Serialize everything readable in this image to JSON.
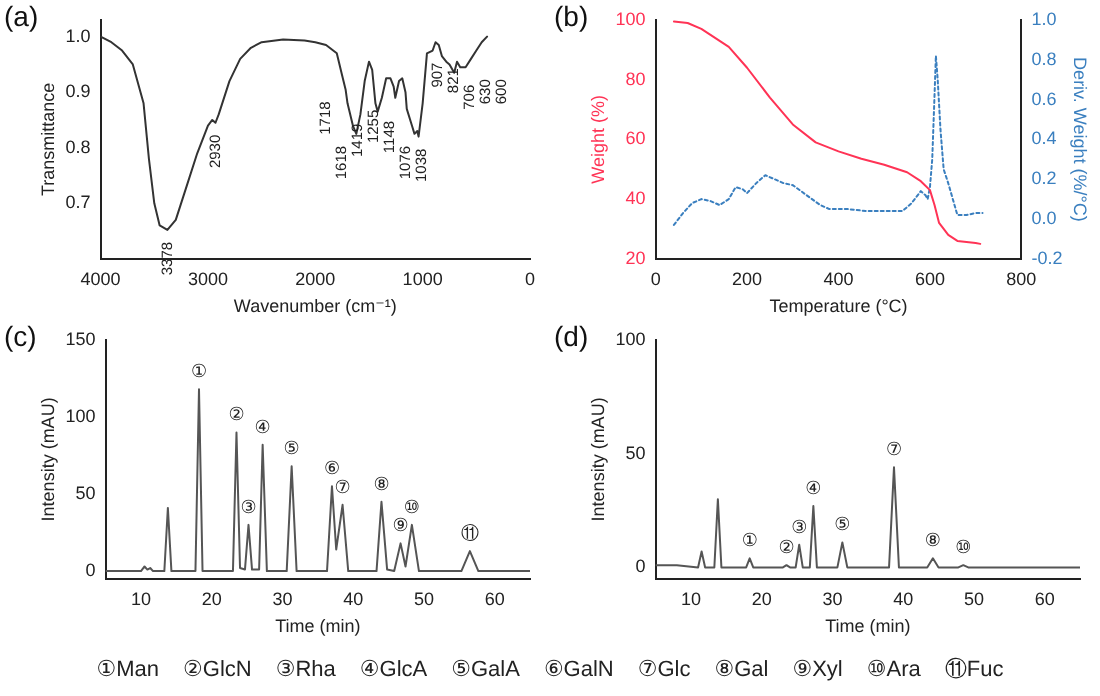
{
  "chart_data": [
    {
      "type": "line",
      "title": "(a)",
      "xlabel": "Wavenumber (cm⁻¹)",
      "ylabel": "Transmittance",
      "color": "#333333",
      "marker": "none",
      "xlim": [
        4000,
        0
      ],
      "xticks": [
        4000,
        3000,
        2000,
        1000,
        0
      ],
      "ylim": [
        0.6,
        1.03
      ],
      "yticks": [
        0.7,
        0.8,
        0.9,
        {
          "value": 1,
          "label": "1.0"
        }
      ],
      "x": [
        4000,
        3900,
        3800,
        3700,
        3600,
        3550,
        3500,
        3450,
        3378,
        3300,
        3200,
        3100,
        3000,
        2960,
        2930,
        2900,
        2800,
        2700,
        2600,
        2500,
        2300,
        2100,
        2000,
        1900,
        1800,
        1750,
        1718,
        1700,
        1650,
        1618,
        1580,
        1540,
        1500,
        1470,
        1440,
        1419,
        1380,
        1340,
        1300,
        1270,
        1255,
        1220,
        1190,
        1160,
        1148,
        1100,
        1076,
        1050,
        1038,
        1000,
        960,
        907,
        880,
        850,
        821,
        780,
        750,
        706,
        680,
        650,
        630,
        600,
        550,
        500,
        450,
        400
      ],
      "values": [
        1.0,
        0.99,
        0.975,
        0.95,
        0.88,
        0.78,
        0.7,
        0.66,
        0.652,
        0.67,
        0.73,
        0.79,
        0.84,
        0.85,
        0.845,
        0.86,
        0.92,
        0.96,
        0.98,
        0.99,
        0.995,
        0.993,
        0.99,
        0.985,
        0.97,
        0.93,
        0.905,
        0.88,
        0.84,
        0.825,
        0.86,
        0.92,
        0.955,
        0.94,
        0.88,
        0.865,
        0.89,
        0.925,
        0.925,
        0.91,
        0.89,
        0.92,
        0.925,
        0.9,
        0.87,
        0.84,
        0.825,
        0.83,
        0.82,
        0.88,
        0.97,
        0.975,
        0.99,
        0.985,
        0.965,
        0.955,
        0.95,
        0.935,
        0.955,
        0.945,
        0.945,
        0.945,
        0.96,
        0.975,
        0.99,
        1.0
      ],
      "annotations": [
        {
          "text": "3378",
          "x": 3378,
          "y": 0.652
        },
        {
          "text": "2930",
          "x": 2930,
          "y": 0.845
        },
        {
          "text": "1718",
          "x": 1718,
          "y": 0.905
        },
        {
          "text": "1618",
          "x": 1618,
          "y": 0.825
        },
        {
          "text": "1419",
          "x": 1419,
          "y": 0.865
        },
        {
          "text": "1255",
          "x": 1255,
          "y": 0.89
        },
        {
          "text": "1148",
          "x": 1148,
          "y": 0.87
        },
        {
          "text": "1076",
          "x": 1076,
          "y": 0.825
        },
        {
          "text": "1038",
          "x": 1038,
          "y": 0.82
        },
        {
          "text": "907",
          "x": 907,
          "y": 0.975
        },
        {
          "text": "821",
          "x": 821,
          "y": 0.965
        },
        {
          "text": "706",
          "x": 706,
          "y": 0.935
        },
        {
          "text": "630",
          "x": 630,
          "y": 0.945
        },
        {
          "text": "600",
          "x": 600,
          "y": 0.945
        }
      ]
    },
    {
      "type": "line",
      "title": "(b)",
      "xlabel": "Temperature (°C)",
      "ylabel": "Weight (%)",
      "y2label": "Deriv. Weight (%/°C)",
      "marker": "none",
      "xlim": [
        0,
        800
      ],
      "xticks": [
        0,
        200,
        400,
        600,
        800
      ],
      "ylim": [
        20,
        100
      ],
      "yticks": [
        20,
        40,
        60,
        80,
        100
      ],
      "y2lim": [
        -0.2,
        1.0
      ],
      "y2ticks": [
        -0.2,
        {
          "value": 0,
          "label": "0.0"
        },
        0.2,
        0.4,
        0.6,
        0.8,
        {
          "value": 1,
          "label": "1.0"
        }
      ],
      "series": [
        {
          "color": "#ff3355",
          "x": [
            40,
            70,
            100,
            130,
            160,
            200,
            250,
            300,
            350,
            400,
            450,
            500,
            550,
            580,
            600,
            610,
            620,
            640,
            660,
            700,
            710
          ],
          "values": [
            99.5,
            99,
            97,
            94,
            91,
            84,
            74,
            65,
            59,
            56,
            53.5,
            51.5,
            49,
            46,
            43,
            38,
            32,
            28,
            26,
            25.3,
            25
          ]
        },
        {
          "color": "#3a7fbf",
          "axis": "y2",
          "line_style": "dotted",
          "x": [
            40,
            60,
            80,
            100,
            120,
            140,
            160,
            175,
            190,
            200,
            220,
            240,
            260,
            280,
            300,
            330,
            360,
            380,
            420,
            460,
            500,
            540,
            560,
            580,
            590,
            595,
            600,
            605,
            610,
            613,
            617,
            623,
            630,
            640,
            650,
            660,
            680,
            700,
            715
          ],
          "values": [
            -0.03,
            0.03,
            0.08,
            0.1,
            0.09,
            0.07,
            0.1,
            0.16,
            0.15,
            0.13,
            0.18,
            0.22,
            0.2,
            0.18,
            0.17,
            0.12,
            0.07,
            0.05,
            0.05,
            0.04,
            0.04,
            0.04,
            0.08,
            0.14,
            0.12,
            0.1,
            0.16,
            0.3,
            0.62,
            0.82,
            0.7,
            0.45,
            0.25,
            0.18,
            0.1,
            0.02,
            0.02,
            0.03,
            0.03
          ]
        }
      ]
    },
    {
      "type": "line",
      "title": "(c)",
      "xlabel": "Time (min)",
      "ylabel": "Intensity (mAU)",
      "color": "#555555",
      "marker": "none",
      "xlim": [
        5,
        65
      ],
      "xticks": [
        10,
        20,
        30,
        40,
        50,
        60
      ],
      "ylim": [
        -5,
        150
      ],
      "yticks": [
        0,
        50,
        100,
        150
      ],
      "x": [
        5,
        10,
        10.5,
        10.9,
        11.3,
        11.7,
        13.3,
        13.8,
        14.3,
        17.7,
        18.2,
        18.7,
        23,
        23.5,
        24,
        24.7,
        25.2,
        25.7,
        26.7,
        27.2,
        27.8,
        30.6,
        31.3,
        32,
        36.3,
        37,
        37.6,
        38.5,
        39.3,
        43.3,
        44,
        44.8,
        45.8,
        46.7,
        47.4,
        48.3,
        49.3,
        55.3,
        56.5,
        57.7,
        65
      ],
      "values": [
        0,
        0,
        3,
        1,
        2,
        0,
        0,
        41,
        0,
        0,
        118,
        0,
        0,
        90,
        2,
        1,
        30,
        1,
        1,
        82,
        0,
        0,
        68,
        0,
        0,
        55,
        14,
        43,
        0,
        0,
        45,
        1,
        0,
        18,
        3,
        30,
        0,
        0,
        13,
        0,
        0
      ],
      "annotations": [
        {
          "text": "①",
          "x": 18.2,
          "y": 118
        },
        {
          "text": "②",
          "x": 23.5,
          "y": 90
        },
        {
          "text": "③",
          "x": 25.2,
          "y": 30
        },
        {
          "text": "④",
          "x": 27.2,
          "y": 82
        },
        {
          "text": "⑤",
          "x": 31.3,
          "y": 68
        },
        {
          "text": "⑥",
          "x": 37,
          "y": 55
        },
        {
          "text": "⑦",
          "x": 38.5,
          "y": 43
        },
        {
          "text": "⑧",
          "x": 44,
          "y": 45
        },
        {
          "text": "⑨",
          "x": 46.7,
          "y": 18
        },
        {
          "text": "⑩",
          "x": 48.3,
          "y": 30
        },
        {
          "text": "⑪",
          "x": 56.5,
          "y": 13
        }
      ]
    },
    {
      "type": "line",
      "title": "(d)",
      "xlabel": "Time (min)",
      "ylabel": "Intensity (mAU)",
      "color": "#555555",
      "marker": "none",
      "xlim": [
        5,
        65
      ],
      "xticks": [
        10,
        20,
        30,
        40,
        50,
        60
      ],
      "ylim": [
        -5,
        100
      ],
      "yticks": [
        0,
        50,
        100
      ],
      "x": [
        5,
        8,
        11,
        11.5,
        12,
        13.3,
        13.8,
        14.3,
        17.8,
        18.3,
        18.8,
        23,
        23.5,
        24,
        24.8,
        25.3,
        25.8,
        26.8,
        27.3,
        27.8,
        30.7,
        31.4,
        32.1,
        38,
        38.7,
        39.4,
        43.4,
        44.2,
        45,
        47.8,
        48.5,
        49.2,
        65
      ],
      "values": [
        1,
        1,
        0,
        7,
        0,
        0,
        30,
        0,
        0,
        4,
        0,
        0,
        1,
        0,
        0,
        10,
        0,
        0,
        27,
        0,
        0,
        11,
        0,
        0,
        44,
        0,
        0,
        4,
        0,
        0,
        1,
        0,
        0
      ],
      "annotations": [
        {
          "text": "①",
          "x": 18.3,
          "y": 4
        },
        {
          "text": "②",
          "x": 23.5,
          "y": 1
        },
        {
          "text": "③",
          "x": 25.3,
          "y": 10
        },
        {
          "text": "④",
          "x": 27.3,
          "y": 27
        },
        {
          "text": "⑤",
          "x": 31.4,
          "y": 11
        },
        {
          "text": "⑦",
          "x": 38.7,
          "y": 44
        },
        {
          "text": "⑧",
          "x": 44.2,
          "y": 4
        },
        {
          "text": "⑩",
          "x": 48.5,
          "y": 1
        }
      ]
    },
    {
      "type": "other",
      "annotations": [
        "①Man",
        "②GlcN",
        "③Rha",
        "④GlcA",
        "⑤GalA",
        "⑥GalN",
        "⑦Glc",
        "⑧Gal",
        "⑨Xyl",
        "⑩Ara",
        "⑪Fuc"
      ]
    }
  ]
}
